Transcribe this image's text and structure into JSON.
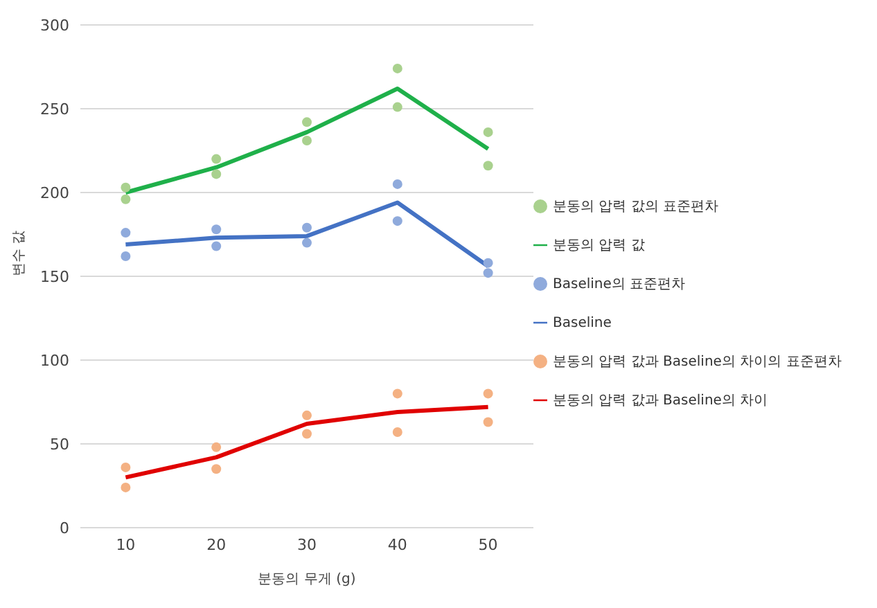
{
  "chart_data": {
    "type": "line",
    "xlabel": "분동의 무게 (g)",
    "ylabel": "변수 값",
    "xlim": [
      5,
      55
    ],
    "xticks": [
      10,
      20,
      30,
      40,
      50
    ],
    "ylim": [
      0,
      300
    ],
    "yticks": [
      0,
      50,
      100,
      150,
      200,
      250,
      300
    ],
    "grid": "y",
    "legend": "right",
    "series": [
      {
        "name": "분동의 압력 값의 표준편차",
        "type": "scatter",
        "marker": "circle",
        "color": "#a9d18e",
        "x": [
          10,
          10,
          20,
          20,
          30,
          30,
          40,
          40,
          50,
          50
        ],
        "values": [
          203,
          196,
          220,
          211,
          242,
          231,
          274,
          251,
          236,
          216
        ]
      },
      {
        "name": "분동의 압력 값",
        "marker": "none",
        "color": "#1fb04a",
        "x": [
          10,
          20,
          30,
          40,
          50
        ],
        "values": [
          200,
          215,
          236,
          262,
          226
        ]
      },
      {
        "name": "Baseline의 표준편차",
        "type": "scatter",
        "marker": "circle",
        "color": "#8faadc",
        "x": [
          10,
          10,
          20,
          20,
          30,
          30,
          40,
          40,
          50,
          50
        ],
        "values": [
          176,
          162,
          178,
          168,
          179,
          170,
          205,
          183,
          158,
          152
        ]
      },
      {
        "name": "Baseline",
        "marker": "none",
        "color": "#4472c4",
        "x": [
          10,
          20,
          30,
          40,
          50
        ],
        "values": [
          169,
          173,
          174,
          194,
          156
        ]
      },
      {
        "name": "분동의 압력 값과 Baseline의 차이의 표준편차",
        "type": "scatter",
        "marker": "circle",
        "color": "#f4b183",
        "x": [
          10,
          10,
          20,
          20,
          30,
          30,
          40,
          40,
          50,
          50
        ],
        "values": [
          36,
          24,
          48,
          35,
          67,
          56,
          80,
          57,
          80,
          63
        ]
      },
      {
        "name": "분동의 압력 값과 Baseline의 차이",
        "marker": "none",
        "color": "#e00000",
        "x": [
          10,
          20,
          30,
          40,
          50
        ],
        "values": [
          30,
          42,
          62,
          69,
          72
        ]
      }
    ]
  }
}
